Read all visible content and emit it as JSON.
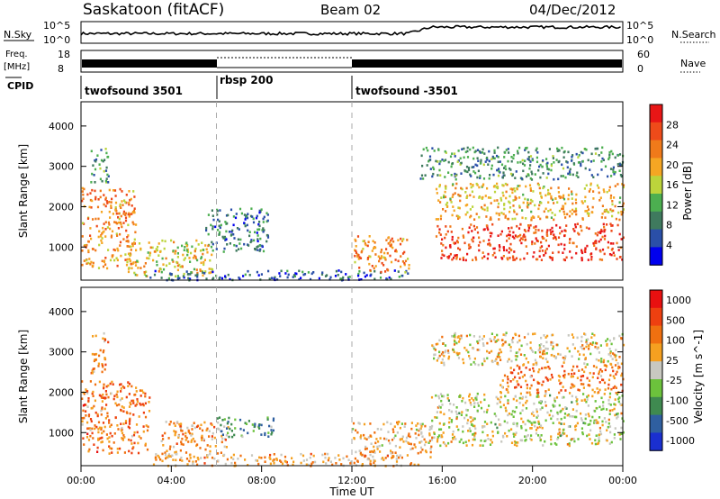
{
  "header": {
    "title": "Saskatoon (fitACF)",
    "beam": "Beam 02",
    "date": "04/Dec/2012"
  },
  "summary_panels": {
    "nsky_label": "N.Sky",
    "nsky_ticks": [
      "10^5",
      "10^0"
    ],
    "nsearch_label": "N.Search",
    "freq_label_top": "Freq.",
    "freq_label_unit": "[MHz]",
    "freq_ticks": [
      "18",
      "8"
    ],
    "nave_label": "Nave",
    "nave_ticks": [
      "60",
      "0"
    ],
    "cpid_label": "CPID",
    "cpid_segments": [
      {
        "start_h": 0,
        "end_h": 6,
        "label": "twofsound 3501"
      },
      {
        "start_h": 6,
        "end_h": 12,
        "label": "rbsp 200"
      },
      {
        "start_h": 12,
        "end_h": 24,
        "label": "twofsound -3501"
      }
    ]
  },
  "x_axis": {
    "label": "Time UT",
    "ticks": [
      "00:00",
      "04:00",
      "08:00",
      "12:00",
      "16:00",
      "20:00",
      "00:00"
    ],
    "tick_hours": [
      0,
      4,
      8,
      12,
      16,
      20,
      24
    ]
  },
  "colors": {
    "power_scale": [
      "#0000ee",
      "#2a4fa8",
      "#3f7a5e",
      "#4caf50",
      "#bcd43b",
      "#f5a623",
      "#f07a1a",
      "#ee4b1a",
      "#e81616"
    ],
    "velocity_scale": [
      "#1a2fd0",
      "#2f5fa0",
      "#3f8a50",
      "#6cc23c",
      "#c8c8c0",
      "#f5a020",
      "#f07010",
      "#ee4010",
      "#e81010"
    ]
  },
  "chart_data": [
    {
      "type": "heatmap",
      "title": "Power",
      "ylabel": "Slant Range [km]",
      "xlabel": "Time UT",
      "xlim_hours": [
        0,
        24
      ],
      "ylim": [
        180,
        4600
      ],
      "y_ticks": [
        1000,
        2000,
        3000,
        4000
      ],
      "colorbar": {
        "label": "Power [dB]",
        "ticks": [
          4,
          8,
          12,
          16,
          20,
          24,
          28
        ]
      },
      "echo_regions": [
        {
          "t0": 0.0,
          "t1": 2.4,
          "r0": 500,
          "r1": 2500,
          "level": 0.7
        },
        {
          "t0": 0.4,
          "t1": 1.2,
          "r0": 2600,
          "r1": 3500,
          "level": 0.35
        },
        {
          "t0": 2.0,
          "t1": 5.8,
          "r0": 300,
          "r1": 1200,
          "level": 0.55
        },
        {
          "t0": 5.5,
          "t1": 8.3,
          "r0": 900,
          "r1": 2000,
          "level": 0.25
        },
        {
          "t0": 3.0,
          "t1": 14.5,
          "r0": 200,
          "r1": 450,
          "level": 0.2
        },
        {
          "t0": 12.0,
          "t1": 14.5,
          "r0": 400,
          "r1": 1300,
          "level": 0.7
        },
        {
          "t0": 15.7,
          "t1": 24.0,
          "r0": 700,
          "r1": 1600,
          "level": 0.85
        },
        {
          "t0": 15.7,
          "t1": 24.0,
          "r0": 1700,
          "r1": 2600,
          "level": 0.6
        },
        {
          "t0": 15.0,
          "t1": 24.0,
          "r0": 2700,
          "r1": 3500,
          "level": 0.3
        }
      ]
    },
    {
      "type": "heatmap",
      "title": "Velocity",
      "ylabel": "Slant Range [km]",
      "xlabel": "Time UT",
      "xlim_hours": [
        0,
        24
      ],
      "ylim": [
        180,
        4600
      ],
      "y_ticks": [
        1000,
        2000,
        3000,
        4000
      ],
      "colorbar": {
        "label": "Velocity [m s^-1]",
        "ticks": [
          "1000",
          "500",
          "100",
          "25",
          "-25",
          "-100",
          "-500",
          "-1000"
        ]
      },
      "echo_regions": [
        {
          "t0": 0.0,
          "t1": 3.0,
          "r0": 500,
          "r1": 2300,
          "level": 0.72
        },
        {
          "t0": 0.4,
          "t1": 1.2,
          "r0": 2500,
          "r1": 3500,
          "level": 0.7
        },
        {
          "t0": 3.5,
          "t1": 6.5,
          "r0": 400,
          "r1": 1300,
          "level": 0.65
        },
        {
          "t0": 6.0,
          "t1": 8.5,
          "r0": 900,
          "r1": 1400,
          "level": 0.3
        },
        {
          "t0": 3.0,
          "t1": 15.0,
          "r0": 200,
          "r1": 500,
          "level": 0.62
        },
        {
          "t0": 12.0,
          "t1": 15.5,
          "r0": 400,
          "r1": 1300,
          "level": 0.6
        },
        {
          "t0": 15.5,
          "t1": 24.0,
          "r0": 700,
          "r1": 2000,
          "level": 0.5
        },
        {
          "t0": 18.5,
          "t1": 24.0,
          "r0": 2000,
          "r1": 2700,
          "level": 0.72
        },
        {
          "t0": 15.5,
          "t1": 24.0,
          "r0": 2700,
          "r1": 3500,
          "level": 0.55
        }
      ]
    }
  ]
}
